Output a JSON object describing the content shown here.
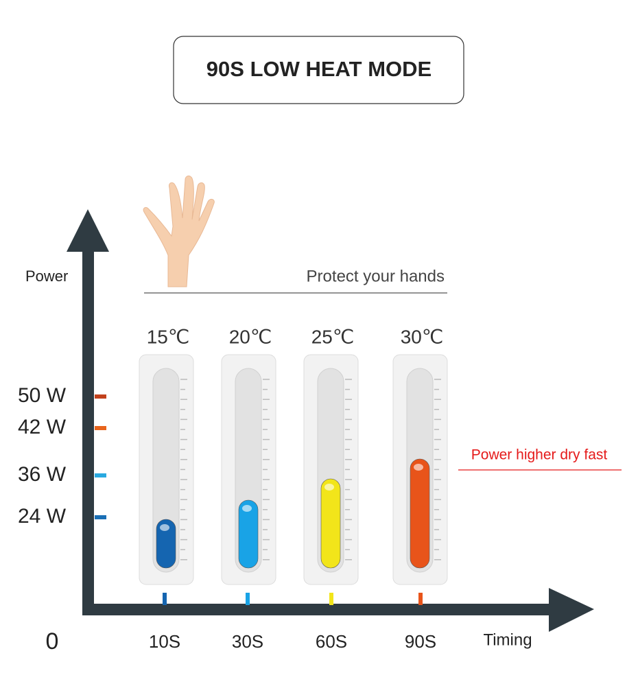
{
  "title": "90S LOW HEAT MODE",
  "y_axis_label": "Power",
  "x_axis_label": "Timing",
  "origin_label": "0",
  "hint": "Protect your hands",
  "note": "Power higher dry fast",
  "power_levels": [
    "50 W",
    "42 W",
    "36 W",
    "24 W"
  ],
  "stages": [
    {
      "temperature": "15℃",
      "time": "10S"
    },
    {
      "temperature": "20℃",
      "time": "30S"
    },
    {
      "temperature": "25℃",
      "time": "60S"
    },
    {
      "temperature": "30℃",
      "time": "90S"
    }
  ]
}
